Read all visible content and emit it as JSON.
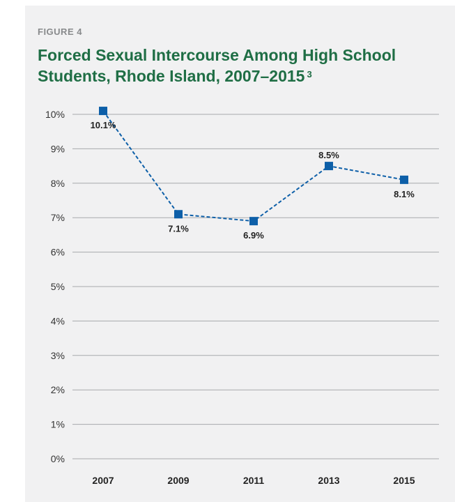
{
  "figure": {
    "label": "FIGURE 4",
    "title": "Forced Sexual Intercourse Among High School Students, Rhode Island, 2007–2015",
    "title_superscript": "3"
  },
  "colors": {
    "background": "#f1f1f2",
    "title": "#1f6e45",
    "label": "#888a8c",
    "series": "#0d5fa8",
    "grid": "#a7a9ac"
  },
  "chart_data": {
    "type": "line",
    "x": [
      "2007",
      "2009",
      "2011",
      "2013",
      "2015"
    ],
    "y_tick_labels": [
      "0%",
      "1%",
      "2%",
      "3%",
      "4%",
      "5%",
      "6%",
      "7%",
      "8%",
      "9%",
      "10%"
    ],
    "ylim": [
      0,
      10
    ],
    "grid": true,
    "series": [
      {
        "values": [
          10.1,
          7.1,
          6.9,
          8.5,
          8.1
        ],
        "data_labels": [
          "10.1%",
          "7.1%",
          "6.9%",
          "8.5%",
          "8.1%"
        ],
        "label_position": [
          "below",
          "below",
          "below",
          "above",
          "below"
        ],
        "marker": "square",
        "line_style": "dashed"
      }
    ]
  }
}
